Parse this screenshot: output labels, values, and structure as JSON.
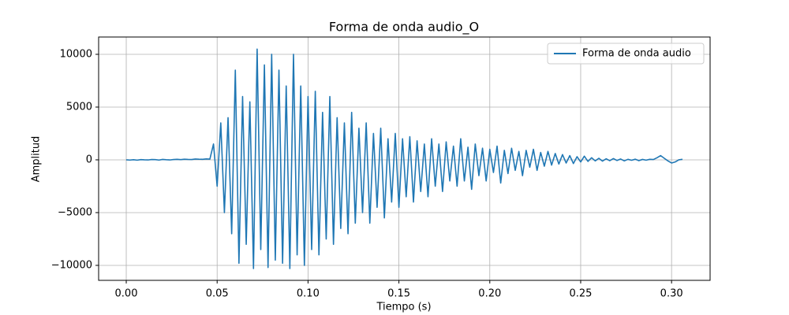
{
  "chart_data": {
    "type": "line",
    "title": "Forma de onda audio_O",
    "xlabel": "Tiempo (s)",
    "ylabel": "Amplitud",
    "x": [
      0,
      0.002,
      0.004,
      0.006,
      0.008,
      0.01,
      0.012,
      0.014,
      0.016,
      0.018,
      0.02,
      0.022,
      0.024,
      0.026,
      0.028,
      0.03,
      0.032,
      0.034,
      0.036,
      0.038,
      0.04,
      0.042,
      0.044,
      0.046,
      0.048,
      0.05,
      0.052,
      0.054,
      0.056,
      0.058,
      0.06,
      0.062,
      0.064,
      0.066,
      0.068,
      0.07,
      0.072,
      0.074,
      0.076,
      0.078,
      0.08,
      0.082,
      0.084,
      0.086,
      0.088,
      0.09,
      0.092,
      0.094,
      0.096,
      0.098,
      0.1,
      0.102,
      0.104,
      0.106,
      0.108,
      0.11,
      0.112,
      0.114,
      0.116,
      0.118,
      0.12,
      0.122,
      0.124,
      0.126,
      0.128,
      0.13,
      0.132,
      0.134,
      0.136,
      0.138,
      0.14,
      0.142,
      0.144,
      0.146,
      0.148,
      0.15,
      0.152,
      0.154,
      0.156,
      0.158,
      0.16,
      0.162,
      0.164,
      0.166,
      0.168,
      0.17,
      0.172,
      0.174,
      0.176,
      0.178,
      0.18,
      0.182,
      0.184,
      0.186,
      0.188,
      0.19,
      0.192,
      0.194,
      0.196,
      0.198,
      0.2,
      0.202,
      0.204,
      0.206,
      0.208,
      0.21,
      0.212,
      0.214,
      0.216,
      0.218,
      0.22,
      0.222,
      0.224,
      0.226,
      0.228,
      0.23,
      0.232,
      0.234,
      0.236,
      0.238,
      0.24,
      0.242,
      0.244,
      0.246,
      0.248,
      0.25,
      0.252,
      0.254,
      0.256,
      0.258,
      0.26,
      0.262,
      0.264,
      0.266,
      0.268,
      0.27,
      0.272,
      0.274,
      0.276,
      0.278,
      0.28,
      0.282,
      0.284,
      0.286,
      0.288,
      0.29,
      0.292,
      0.294,
      0.296,
      0.298,
      0.3,
      0.302,
      0.304,
      0.306
    ],
    "series": [
      {
        "name": "Forma de onda audio",
        "color": "#1f77b4",
        "values": [
          0,
          -20,
          10,
          -30,
          20,
          0,
          -10,
          30,
          20,
          -20,
          40,
          10,
          -10,
          30,
          50,
          20,
          60,
          40,
          30,
          80,
          60,
          50,
          90,
          70,
          1500,
          -2500,
          3500,
          -5000,
          4000,
          -7000,
          8500,
          -9800,
          6000,
          -8000,
          5500,
          -10300,
          10500,
          -8500,
          9000,
          -10200,
          10000,
          -9500,
          8500,
          -9800,
          7000,
          -10300,
          10000,
          -9000,
          7000,
          -10000,
          6000,
          -8500,
          6500,
          -9000,
          4500,
          -7500,
          6000,
          -8000,
          4000,
          -6500,
          3500,
          -7000,
          4500,
          -6000,
          3000,
          -5000,
          3500,
          -6000,
          2500,
          -4500,
          3000,
          -5500,
          2000,
          -4000,
          2500,
          -4500,
          2000,
          -3500,
          2200,
          -4000,
          1800,
          -3000,
          1500,
          -3500,
          2000,
          -2500,
          1500,
          -3000,
          1700,
          -2000,
          1300,
          -2500,
          2000,
          -2000,
          1200,
          -2800,
          1500,
          -1500,
          1100,
          -2000,
          1000,
          -1200,
          1300,
          -2200,
          900,
          -1300,
          1100,
          -1000,
          800,
          -1500,
          900,
          -700,
          1000,
          -1000,
          700,
          -600,
          800,
          -500,
          600,
          -400,
          500,
          -300,
          400,
          -350,
          300,
          -200,
          350,
          -150,
          200,
          -100,
          150,
          -120,
          100,
          -80,
          120,
          -60,
          80,
          -100,
          50,
          -40,
          60,
          -80,
          40,
          -30,
          50,
          30,
          200,
          400,
          150,
          -100,
          -300,
          -200,
          0,
          50
        ]
      }
    ],
    "xlim": [
      -0.0152,
      0.3212
    ],
    "ylim": [
      -11420,
      11640
    ],
    "xticks": [
      {
        "value": 0,
        "label": "0.00"
      },
      {
        "value": 0.05,
        "label": "0.05"
      },
      {
        "value": 0.1,
        "label": "0.10"
      },
      {
        "value": 0.15,
        "label": "0.15"
      },
      {
        "value": 0.2,
        "label": "0.20"
      },
      {
        "value": 0.25,
        "label": "0.25"
      },
      {
        "value": 0.3,
        "label": "0.30"
      }
    ],
    "yticks": [
      {
        "value": -10000,
        "label": "−10000"
      },
      {
        "value": -5000,
        "label": "−5000"
      },
      0,
      5000,
      10000
    ],
    "grid": true,
    "legend": "upper right"
  }
}
